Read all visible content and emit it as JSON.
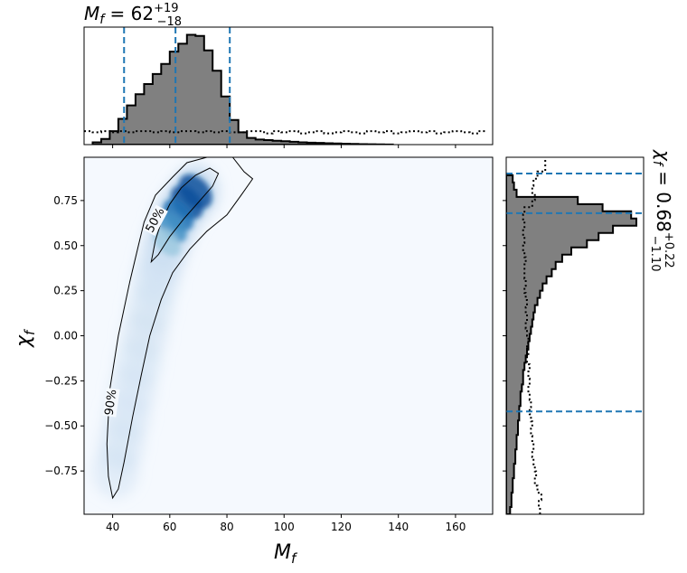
{
  "chart_data": [
    {
      "type": "heatmap",
      "panel": "joint",
      "xlabel_main": "M",
      "xlabel_sub": "f",
      "ylabel_main": "χ",
      "ylabel_sub": "f",
      "xlim": [
        30,
        173
      ],
      "ylim": [
        -0.99,
        0.99
      ],
      "x_ticks": [
        40,
        60,
        80,
        100,
        120,
        140,
        160
      ],
      "x_tick_labels": [
        "40",
        "60",
        "80",
        "100",
        "120",
        "140",
        "160"
      ],
      "y_ticks": [
        0.75,
        0.5,
        0.25,
        0.0,
        -0.25,
        -0.5,
        -0.75
      ],
      "y_tick_labels": [
        "0.75",
        "0.50",
        "0.25",
        "0.00",
        "−0.25",
        "−0.50",
        "−0.75"
      ],
      "grid": false,
      "colormap": "Blues",
      "density_ridge": [
        {
          "x": 69,
          "y": 0.8,
          "w": 1.0
        },
        {
          "x": 66,
          "y": 0.74,
          "w": 0.92
        },
        {
          "x": 63,
          "y": 0.67,
          "w": 0.75
        },
        {
          "x": 61,
          "y": 0.6,
          "w": 0.55
        },
        {
          "x": 59,
          "y": 0.52,
          "w": 0.4
        },
        {
          "x": 57,
          "y": 0.42,
          "w": 0.28
        },
        {
          "x": 55,
          "y": 0.3,
          "w": 0.2
        },
        {
          "x": 53,
          "y": 0.15,
          "w": 0.15
        },
        {
          "x": 51,
          "y": 0.0,
          "w": 0.12
        },
        {
          "x": 49,
          "y": -0.15,
          "w": 0.1
        },
        {
          "x": 47,
          "y": -0.3,
          "w": 0.08
        },
        {
          "x": 45,
          "y": -0.45,
          "w": 0.07
        },
        {
          "x": 43,
          "y": -0.6,
          "w": 0.06
        },
        {
          "x": 41,
          "y": -0.75,
          "w": 0.05
        }
      ],
      "contours": [
        {
          "label": "50%",
          "label_at": [
            55,
            0.64
          ],
          "path": [
            [
              53.5,
              0.41
            ],
            [
              55,
              0.53
            ],
            [
              57,
              0.63
            ],
            [
              60,
              0.73
            ],
            [
              64,
              0.82
            ],
            [
              69,
              0.89
            ],
            [
              74,
              0.93
            ],
            [
              77,
              0.9
            ],
            [
              75,
              0.83
            ],
            [
              70,
              0.74
            ],
            [
              65,
              0.65
            ],
            [
              60,
              0.55
            ],
            [
              56,
              0.45
            ],
            [
              53.5,
              0.41
            ]
          ]
        },
        {
          "label": "90%",
          "label_at": [
            39.5,
            -0.37
          ],
          "path": [
            [
              40,
              -0.9
            ],
            [
              38.5,
              -0.78
            ],
            [
              38,
              -0.6
            ],
            [
              39,
              -0.3
            ],
            [
              42,
              0.0
            ],
            [
              46,
              0.3
            ],
            [
              49,
              0.5
            ],
            [
              51,
              0.63
            ],
            [
              55,
              0.78
            ],
            [
              61,
              0.88
            ],
            [
              66,
              0.96
            ],
            [
              73,
              0.99
            ],
            [
              82,
              0.99
            ],
            [
              86,
              0.91
            ],
            [
              89,
              0.87
            ],
            [
              85,
              0.78
            ],
            [
              80,
              0.67
            ],
            [
              73,
              0.58
            ],
            [
              67,
              0.48
            ],
            [
              61,
              0.35
            ],
            [
              57,
              0.2
            ],
            [
              53,
              0.0
            ],
            [
              50,
              -0.22
            ],
            [
              47,
              -0.45
            ],
            [
              44,
              -0.7
            ],
            [
              42,
              -0.85
            ],
            [
              40,
              -0.9
            ]
          ]
        }
      ]
    },
    {
      "type": "bar",
      "panel": "top-marginal",
      "title": {
        "lhs": "M",
        "sub": "f",
        "eq": " = 62",
        "sup": "+19",
        "inf": "−18"
      },
      "bin_edges_start": 33,
      "bin_width": 3,
      "values": [
        0.02,
        0.05,
        0.12,
        0.23,
        0.35,
        0.45,
        0.54,
        0.63,
        0.72,
        0.83,
        0.9,
        0.98,
        0.97,
        0.84,
        0.66,
        0.43,
        0.22,
        0.11,
        0.06,
        0.045,
        0.04,
        0.035,
        0.03,
        0.025,
        0.02,
        0.017,
        0.015,
        0.012,
        0.01,
        0.008,
        0.006,
        0.004,
        0.003,
        0.002,
        0.001
      ],
      "prior": [
        0.12,
        0.11,
        0.12,
        0.11,
        0.12,
        0.11,
        0.12,
        0.12,
        0.11,
        0.12,
        0.11,
        0.12,
        0.12,
        0.11,
        0.12,
        0.11,
        0.12,
        0.11,
        0.11,
        0.12,
        0.12,
        0.1,
        0.12,
        0.11,
        0.12,
        0.1,
        0.11,
        0.12,
        0.1,
        0.11,
        0.12,
        0.11,
        0.1,
        0.12,
        0.11,
        0.12,
        0.1,
        0.11,
        0.12,
        0.11,
        0.12,
        0.1,
        0.11,
        0.12,
        0.11,
        0.1,
        0.12
      ],
      "prior_start": 30,
      "prior_step": 3,
      "markers": [
        44,
        62,
        81
      ],
      "ylim": [
        0,
        1.0
      ]
    },
    {
      "type": "bar",
      "panel": "right-marginal",
      "orientation": "horizontal",
      "title": {
        "lhs": "χ",
        "sub": "f",
        "eq": " = 0.68",
        "sup": "+0.22",
        "inf": "−1.10"
      },
      "bin_edges_start": -0.99,
      "bin_width": 0.04,
      "values": [
        0.03,
        0.04,
        0.04,
        0.05,
        0.05,
        0.06,
        0.06,
        0.07,
        0.07,
        0.08,
        0.08,
        0.09,
        0.09,
        0.1,
        0.1,
        0.11,
        0.11,
        0.12,
        0.13,
        0.13,
        0.14,
        0.15,
        0.16,
        0.17,
        0.18,
        0.19,
        0.2,
        0.21,
        0.22,
        0.24,
        0.26,
        0.28,
        0.31,
        0.35,
        0.38,
        0.43,
        0.5,
        0.62,
        0.71,
        0.82,
        1.0,
        0.96,
        0.74,
        0.55,
        0.08,
        0.06,
        0.05
      ],
      "prior": [
        0.26,
        0.25,
        0.27,
        0.24,
        0.22,
        0.23,
        0.22,
        0.21,
        0.2,
        0.21,
        0.2,
        0.19,
        0.2,
        0.19,
        0.18,
        0.19,
        0.18,
        0.17,
        0.18,
        0.17,
        0.18,
        0.16,
        0.17,
        0.16,
        0.17,
        0.16,
        0.15,
        0.16,
        0.15,
        0.16,
        0.15,
        0.14,
        0.15,
        0.14,
        0.14,
        0.15,
        0.14,
        0.13,
        0.14,
        0.13,
        0.14,
        0.13,
        0.14,
        0.2,
        0.22,
        0.2,
        0.21,
        0.24,
        0.3,
        0.3
      ],
      "markers": [
        0.9,
        0.68,
        -0.42
      ],
      "xlim": [
        0,
        1.0
      ]
    }
  ]
}
